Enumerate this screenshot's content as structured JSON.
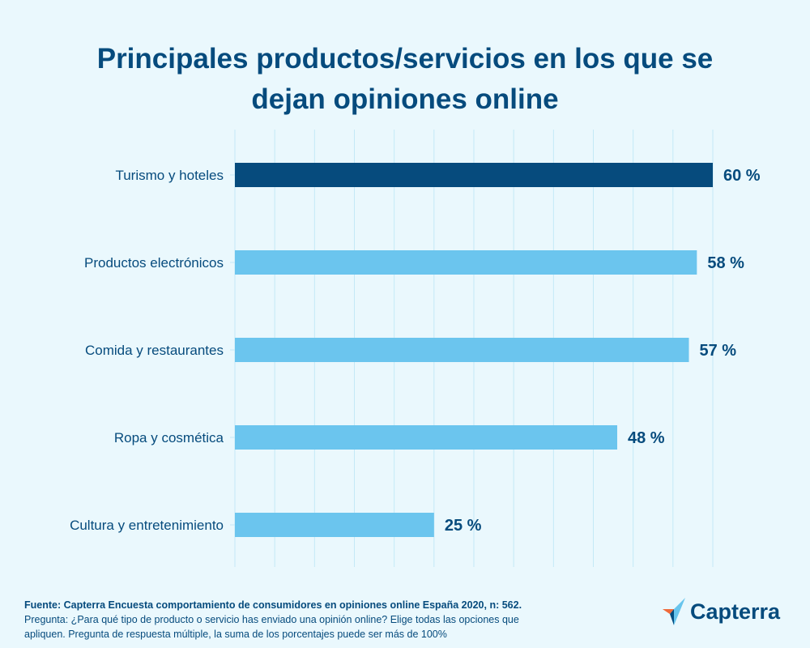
{
  "chart_data": {
    "type": "bar",
    "orientation": "horizontal",
    "title": "Principales productos/servicios en los que se dejan opiniones online",
    "categories": [
      "Turismo y hoteles",
      "Productos electrónicos",
      "Comida y restaurantes",
      "Ropa y cosmética",
      "Cultura y entretenimiento"
    ],
    "values": [
      60,
      58,
      57,
      48,
      25
    ],
    "data_labels": [
      "60 %",
      "58 %",
      "57 %",
      "48 %",
      "25 %"
    ],
    "xlim": [
      0,
      60
    ],
    "grid": true,
    "grid_step": 5,
    "colors": {
      "highlight": "#064b7d",
      "bar": "#6bc5ee",
      "grid": "#c4e9f7",
      "text": "#064b7d"
    }
  },
  "footer": {
    "source": "Fuente: Capterra Encuesta comportamiento de consumidores en opiniones online España 2020, n: 562.",
    "question_line1": "Pregunta: ¿Para qué tipo de producto o servicio has enviado una opinión online? Elige todas las opciones que",
    "question_line2": "apliquen. Pregunta de respuesta múltiple, la suma de los porcentajes puede ser más de 100%"
  },
  "logo": {
    "text": "Capterra"
  }
}
